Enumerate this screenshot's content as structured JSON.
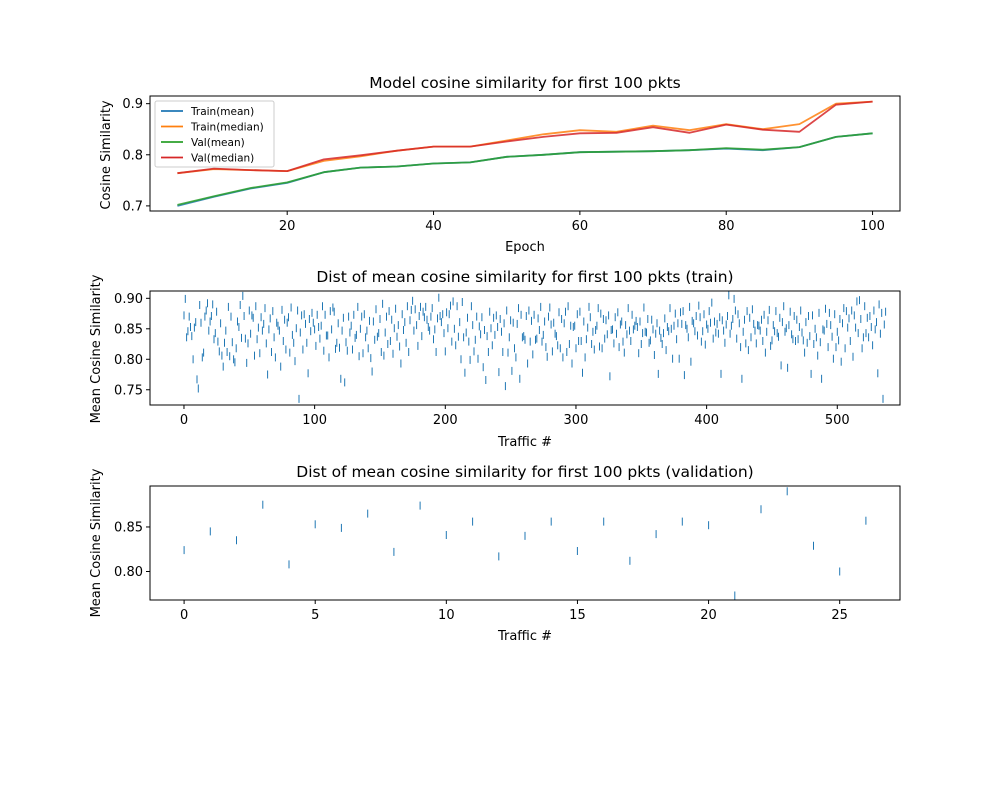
{
  "chart_data": [
    {
      "type": "line",
      "title": "Model cosine similarity for first 100 pkts",
      "xlabel": "Epoch",
      "ylabel": "Cosine Similarity",
      "xlim": [
        1.25,
        103.75
      ],
      "ylim": [
        0.69,
        0.915
      ],
      "xticks": [
        20,
        40,
        60,
        80,
        100
      ],
      "yticks": [
        0.7,
        0.8,
        0.9
      ],
      "xtick_labels": [
        "20",
        "40",
        "60",
        "80",
        "100"
      ],
      "ytick_labels": [
        "0.7",
        "0.8",
        "0.9"
      ],
      "grid": false,
      "legend": "upper-left",
      "x": [
        5,
        10,
        15,
        20,
        25,
        30,
        35,
        40,
        45,
        50,
        55,
        60,
        65,
        70,
        75,
        80,
        85,
        90,
        95,
        100
      ],
      "series": [
        {
          "name": "Train(mean)",
          "color": "#1f77b4",
          "values": [
            0.7,
            0.718,
            0.734,
            0.745,
            0.766,
            0.775,
            0.777,
            0.783,
            0.785,
            0.796,
            0.8,
            0.805,
            0.806,
            0.807,
            0.809,
            0.812,
            0.809,
            0.815,
            0.835,
            0.842
          ]
        },
        {
          "name": "Train(median)",
          "color": "#ff7f0e",
          "values": [
            0.764,
            0.772,
            0.77,
            0.768,
            0.788,
            0.797,
            0.808,
            0.816,
            0.816,
            0.828,
            0.84,
            0.848,
            0.845,
            0.857,
            0.848,
            0.86,
            0.85,
            0.86,
            0.9,
            0.904
          ]
        },
        {
          "name": "Val(mean)",
          "color": "#2ca02c",
          "values": [
            0.702,
            0.719,
            0.735,
            0.746,
            0.766,
            0.775,
            0.777,
            0.783,
            0.785,
            0.796,
            0.8,
            0.805,
            0.806,
            0.807,
            0.809,
            0.813,
            0.81,
            0.815,
            0.835,
            0.842
          ]
        },
        {
          "name": "Val(median)",
          "color": "#d62728",
          "values": [
            0.764,
            0.773,
            0.77,
            0.768,
            0.791,
            0.799,
            0.808,
            0.816,
            0.816,
            0.826,
            0.835,
            0.842,
            0.843,
            0.854,
            0.843,
            0.859,
            0.849,
            0.845,
            0.898,
            0.904
          ]
        }
      ]
    },
    {
      "type": "scatter",
      "marker": "|",
      "color": "#1f77b4",
      "title": "Dist of mean cosine similarity for first 100 pkts (train)",
      "xlabel": "Traffic #",
      "ylabel": "Mean Cosine Similarity",
      "xlim": [
        -26,
        548
      ],
      "ylim": [
        0.725,
        0.912
      ],
      "xticks": [
        0,
        100,
        200,
        300,
        400,
        500
      ],
      "yticks": [
        0.75,
        0.8,
        0.85,
        0.9
      ],
      "xtick_labels": [
        "0",
        "100",
        "200",
        "300",
        "400",
        "500"
      ],
      "ytick_labels": [
        "0.75",
        "0.80",
        "0.85",
        "0.90"
      ],
      "grid": false,
      "n_points": 525,
      "note": "Dense distribution of one marker per traffic sample, x = 0..524, y mostly within 0.75–0.91",
      "y": [
        0.872,
        0.899,
        0.836,
        0.846,
        0.87,
        0.853,
        0.838,
        0.8,
        0.852,
        0.861,
        0.767,
        0.752,
        0.889,
        0.86,
        0.803,
        0.811,
        0.87,
        0.88,
        0.892,
        0.847,
        0.862,
        0.871,
        0.89,
        0.833,
        0.843,
        0.878,
        0.829,
        0.813,
        0.859,
        0.806,
        0.788,
        0.827,
        0.847,
        0.812,
        0.886,
        0.805,
        0.87,
        0.828,
        0.8,
        0.795,
        0.818,
        0.862,
        0.853,
        0.889,
        0.835,
        0.904,
        0.871,
        0.834,
        0.794,
        0.826,
        0.88,
        0.842,
        0.872,
        0.868,
        0.806,
        0.887,
        0.833,
        0.852,
        0.81,
        0.869,
        0.847,
        0.858,
        0.884,
        0.826,
        0.775,
        0.849,
        0.867,
        0.812,
        0.879,
        0.836,
        0.803,
        0.86,
        0.855,
        0.847,
        0.788,
        0.881,
        0.83,
        0.865,
        0.816,
        0.86,
        0.869,
        0.811,
        0.885,
        0.84,
        0.827,
        0.797,
        0.851,
        0.88,
        0.735,
        0.844,
        0.872,
        0.816,
        0.874,
        0.858,
        0.827,
        0.777,
        0.866,
        0.846,
        0.876,
        0.86,
        0.849,
        0.822,
        0.873,
        0.853,
        0.834,
        0.855,
        0.887,
        0.814,
        0.873,
        0.839,
        0.839,
        0.803,
        0.879,
        0.849,
        0.885,
        0.878,
        0.817,
        0.827,
        0.859,
        0.819,
        0.768,
        0.847,
        0.868,
        0.762,
        0.828,
        0.814,
        0.87,
        0.844,
        0.855,
        0.816,
        0.873,
        0.835,
        0.84,
        0.886,
        0.805,
        0.85,
        0.87,
        0.81,
        0.874,
        0.836,
        0.847,
        0.818,
        0.863,
        0.802,
        0.78,
        0.862,
        0.832,
        0.882,
        0.837,
        0.843,
        0.866,
        0.812,
        0.891,
        0.806,
        0.844,
        0.87,
        0.825,
        0.879,
        0.83,
        0.865,
        0.809,
        0.851,
        0.883,
        0.837,
        0.856,
        0.821,
        0.793,
        0.874,
        0.848,
        0.861,
        0.827,
        0.887,
        0.812,
        0.864,
        0.881,
        0.896,
        0.847,
        0.882,
        0.856,
        0.822,
        0.871,
        0.886,
        0.838,
        0.878,
        0.869,
        0.886,
        0.865,
        0.853,
        0.847,
        0.87,
        0.884,
        0.833,
        0.849,
        0.812,
        0.867,
        0.901,
        0.871,
        0.861,
        0.874,
        0.843,
        0.813,
        0.877,
        0.851,
        0.874,
        0.888,
        0.829,
        0.895,
        0.85,
        0.823,
        0.887,
        0.837,
        0.861,
        0.8,
        0.894,
        0.836,
        0.778,
        0.844,
        0.868,
        0.829,
        0.799,
        0.887,
        0.856,
        0.813,
        0.832,
        0.87,
        0.801,
        0.854,
        0.841,
        0.869,
        0.787,
        0.848,
        0.766,
        0.838,
        0.812,
        0.878,
        0.851,
        0.823,
        0.868,
        0.84,
        0.872,
        0.853,
        0.779,
        0.866,
        0.845,
        0.812,
        0.859,
        0.756,
        0.88,
        0.811,
        0.836,
        0.864,
        0.781,
        0.86,
        0.818,
        0.803,
        0.858,
        0.884,
        0.768,
        0.873,
        0.836,
        0.838,
        0.832,
        0.871,
        0.793,
        0.88,
        0.829,
        0.863,
        0.808,
        0.873,
        0.832,
        0.834,
        0.867,
        0.848,
        0.886,
        0.829,
        0.84,
        0.862,
        0.82,
        0.804,
        0.87,
        0.885,
        0.857,
        0.813,
        0.86,
        0.842,
        0.838,
        0.823,
        0.877,
        0.818,
        0.866,
        0.803,
        0.859,
        0.878,
        0.812,
        0.887,
        0.825,
        0.855,
        0.793,
        0.853,
        0.855,
        0.818,
        0.874,
        0.83,
        0.878,
        0.83,
        0.778,
        0.862,
        0.803,
        0.833,
        0.852,
        0.886,
        0.869,
        0.825,
        0.845,
        0.816,
        0.848,
        0.855,
        0.884,
        0.821,
        0.875,
        0.818,
        0.866,
        0.834,
        0.864,
        0.841,
        0.872,
        0.772,
        0.848,
        0.849,
        0.826,
        0.869,
        0.842,
        0.877,
        0.82,
        0.857,
        0.862,
        0.829,
        0.811,
        0.856,
        0.841,
        0.884,
        0.847,
        0.83,
        0.873,
        0.849,
        0.855,
        0.863,
        0.853,
        0.81,
        0.862,
        0.825,
        0.843,
        0.885,
        0.845,
        0.844,
        0.866,
        0.827,
        0.831,
        0.865,
        0.849,
        0.807,
        0.842,
        0.859,
        0.776,
        0.847,
        0.835,
        0.825,
        0.843,
        0.867,
        0.815,
        0.853,
        0.846,
        0.884,
        0.85,
        0.801,
        0.855,
        0.875,
        0.833,
        0.859,
        0.801,
        0.877,
        0.858,
        0.879,
        0.774,
        0.856,
        0.85,
        0.836,
        0.886,
        0.796,
        0.863,
        0.859,
        0.846,
        0.871,
        0.839,
        0.888,
        0.869,
        0.829,
        0.846,
        0.874,
        0.824,
        0.857,
        0.85,
        0.879,
        0.86,
        0.893,
        0.834,
        0.862,
        0.844,
        0.858,
        0.842,
        0.869,
        0.776,
        0.864,
        0.847,
        0.827,
        0.857,
        0.871,
        0.905,
        0.842,
        0.855,
        0.866,
        0.899,
        0.88,
        0.834,
        0.874,
        0.859,
        0.82,
        0.768,
        0.845,
        0.865,
        0.826,
        0.879,
        0.815,
        0.868,
        0.836,
        0.882,
        0.858,
        0.847,
        0.826,
        0.856,
        0.855,
        0.847,
        0.865,
        0.83,
        0.873,
        0.811,
        0.845,
        0.864,
        0.881,
        0.822,
        0.831,
        0.856,
        0.846,
        0.879,
        0.843,
        0.837,
        0.868,
        0.79,
        0.861,
        0.887,
        0.845,
        0.851,
        0.786,
        0.856,
        0.878,
        0.841,
        0.833,
        0.871,
        0.83,
        0.865,
        0.833,
        0.853,
        0.88,
        0.844,
        0.831,
        0.811,
        0.861,
        0.827,
        0.871,
        0.838,
        0.776,
        0.872,
        0.825,
        0.85,
        0.836,
        0.806,
        0.876,
        0.828,
        0.768,
        0.849,
        0.847,
        0.883,
        0.858,
        0.82,
        0.876,
        0.856,
        0.837,
        0.801,
        0.874,
        0.82,
        0.845,
        0.831,
        0.866,
        0.796,
        0.859,
        0.884,
        0.818,
        0.879,
        0.852,
        0.867,
        0.83,
        0.88,
        0.804,
        0.872,
        0.852,
        0.895,
        0.843,
        0.897,
        0.866,
        0.818,
        0.836,
        0.887,
        0.843,
        0.868,
        0.836,
        0.871,
        0.853,
        0.823,
        0.88,
        0.849,
        0.861,
        0.777,
        0.89,
        0.842,
        0.876,
        0.735,
        0.857,
        0.878
      ]
    },
    {
      "type": "scatter",
      "marker": "|",
      "color": "#1f77b4",
      "title": "Dist of mean cosine similarity for first 100 pkts (validation)",
      "xlabel": "Traffic #",
      "ylabel": "Mean Cosine Similarity",
      "xlim": [
        -1.3,
        27.3
      ],
      "ylim": [
        0.768,
        0.896
      ],
      "xticks": [
        0,
        5,
        10,
        15,
        20,
        25
      ],
      "yticks": [
        0.8,
        0.85
      ],
      "xtick_labels": [
        "0",
        "5",
        "10",
        "15",
        "20",
        "25"
      ],
      "ytick_labels": [
        "0.80",
        "0.85"
      ],
      "grid": false,
      "x": [
        0,
        1,
        2,
        3,
        4,
        5,
        6,
        7,
        8,
        9,
        10,
        11,
        12,
        13,
        14,
        15,
        16,
        17,
        18,
        19,
        20,
        21,
        22,
        23,
        24,
        25,
        26
      ],
      "y": [
        0.824,
        0.845,
        0.835,
        0.875,
        0.808,
        0.853,
        0.849,
        0.865,
        0.822,
        0.874,
        0.841,
        0.856,
        0.817,
        0.84,
        0.856,
        0.823,
        0.856,
        0.812,
        0.842,
        0.856,
        0.852,
        0.773,
        0.87,
        0.89,
        0.829,
        0.8,
        0.857
      ]
    }
  ]
}
